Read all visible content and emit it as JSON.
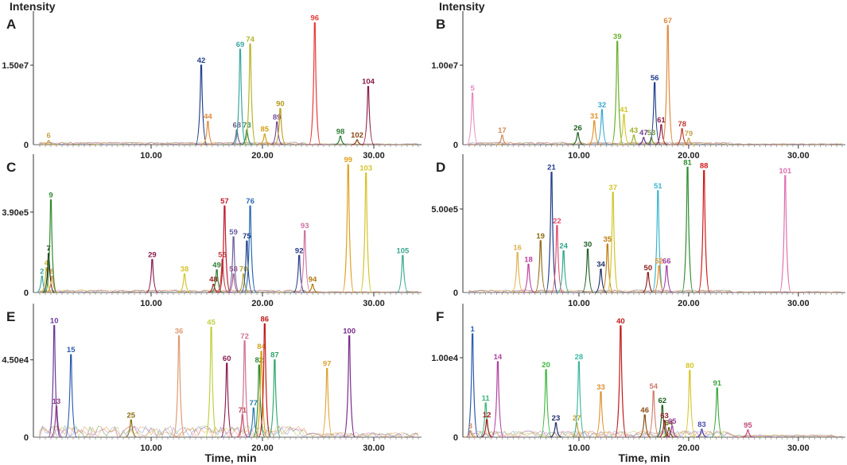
{
  "figure": {
    "y_axis_title": "Intensity",
    "x_axis_title": "Time, min"
  },
  "chart_data": [
    {
      "type": "line",
      "panel": "A",
      "xlim": [
        0,
        34
      ],
      "ylim": [
        0,
        24000000.0
      ],
      "y_tick": {
        "value": 15000000.0,
        "label": "1.50e7"
      },
      "y_zero_label": "0",
      "x_ticks": [
        10,
        20,
        30
      ],
      "x_tick_labels": [
        "10.00",
        "20.00",
        "30.00"
      ],
      "peaks": [
        {
          "label": "6",
          "x": 0.8,
          "y": 800000.0,
          "color": "#c9a24a"
        },
        {
          "label": "42",
          "x": 14.5,
          "y": 15000000.0,
          "color": "#1f3d8a"
        },
        {
          "label": "44",
          "x": 15.1,
          "y": 4400000.0,
          "color": "#e08a3c"
        },
        {
          "label": "68",
          "x": 17.7,
          "y": 2800000.0,
          "color": "#6b5b8a"
        },
        {
          "label": "69",
          "x": 18.0,
          "y": 18000000.0,
          "color": "#3aa6a0"
        },
        {
          "label": "73",
          "x": 18.6,
          "y": 2800000.0,
          "color": "#2e8b57"
        },
        {
          "label": "74",
          "x": 18.9,
          "y": 19000000.0,
          "color": "#b5b52a"
        },
        {
          "label": "85",
          "x": 20.2,
          "y": 2000000.0,
          "color": "#d4a017"
        },
        {
          "label": "89",
          "x": 21.3,
          "y": 4300000.0,
          "color": "#7a4a9a"
        },
        {
          "label": "90",
          "x": 21.6,
          "y": 6800000.0,
          "color": "#b59a1a"
        },
        {
          "label": "96",
          "x": 24.7,
          "y": 23000000.0,
          "color": "#e83a3a"
        },
        {
          "label": "98",
          "x": 27.0,
          "y": 1600000.0,
          "color": "#2e7d32"
        },
        {
          "label": "102",
          "x": 28.5,
          "y": 900000.0,
          "color": "#8b4513"
        },
        {
          "label": "104",
          "x": 29.5,
          "y": 11000000.0,
          "color": "#8b1a4a"
        }
      ]
    },
    {
      "type": "line",
      "panel": "B",
      "xlim": [
        0,
        34
      ],
      "ylim": [
        0,
        16000000.0
      ],
      "y_tick": {
        "value": 10000000.0,
        "label": "1.00e7"
      },
      "y_zero_label": "0",
      "x_ticks": [
        10,
        20,
        30
      ],
      "x_tick_labels": [
        "10.00",
        "20.00",
        "30.00"
      ],
      "peaks": [
        {
          "label": "5",
          "x": 0.3,
          "y": 6500000.0,
          "color": "#e88ac0"
        },
        {
          "label": "17",
          "x": 3.0,
          "y": 1200000.0,
          "color": "#d08a5a"
        },
        {
          "label": "26",
          "x": 9.9,
          "y": 1500000.0,
          "color": "#1b5e20"
        },
        {
          "label": "31",
          "x": 11.4,
          "y": 3000000.0,
          "color": "#e0902a"
        },
        {
          "label": "32",
          "x": 12.1,
          "y": 4400000.0,
          "color": "#3aa6d0"
        },
        {
          "label": "39",
          "x": 13.5,
          "y": 13000000.0,
          "color": "#6ab02a"
        },
        {
          "label": "41",
          "x": 14.1,
          "y": 3800000.0,
          "color": "#d4c42a"
        },
        {
          "label": "43",
          "x": 15.0,
          "y": 1200000.0,
          "color": "#a0b02a"
        },
        {
          "label": "47",
          "x": 15.9,
          "y": 900000.0,
          "color": "#6a3a8a"
        },
        {
          "label": "53",
          "x": 16.6,
          "y": 900000.0,
          "color": "#7a9a3a"
        },
        {
          "label": "56",
          "x": 16.9,
          "y": 7800000.0,
          "color": "#1f3d8a"
        },
        {
          "label": "61",
          "x": 17.5,
          "y": 2500000.0,
          "color": "#8b1a4a"
        },
        {
          "label": "67",
          "x": 18.1,
          "y": 15000000.0,
          "color": "#e08a3c"
        },
        {
          "label": "78",
          "x": 19.4,
          "y": 2000000.0,
          "color": "#c0392b"
        },
        {
          "label": "79",
          "x": 20.0,
          "y": 800000.0,
          "color": "#c9a24a"
        }
      ]
    },
    {
      "type": "line",
      "panel": "C",
      "xlim": [
        0,
        34
      ],
      "ylim": [
        0,
        640000.0
      ],
      "y_tick": {
        "value": 390000.0,
        "label": "3.90e5"
      },
      "y_zero_label": "0",
      "x_ticks": [
        10,
        20,
        30
      ],
      "x_tick_labels": [
        "10.00",
        "20.00",
        "30.00"
      ],
      "peaks": [
        {
          "label": "2",
          "x": 0.2,
          "y": 80000.0,
          "color": "#3aa6a0"
        },
        {
          "label": "4",
          "x": 0.6,
          "y": 120000.0,
          "color": "#b5b52a"
        },
        {
          "label": "7",
          "x": 0.8,
          "y": 190000.0,
          "color": "#222222"
        },
        {
          "label": "8",
          "x": 1.1,
          "y": 80000.0,
          "color": "#e08a3c"
        },
        {
          "label": "9",
          "x": 1.0,
          "y": 450000.0,
          "color": "#2e8b2e"
        },
        {
          "label": "29",
          "x": 10.1,
          "y": 160000.0,
          "color": "#8b1a4a"
        },
        {
          "label": "38",
          "x": 13.0,
          "y": 90000.0,
          "color": "#d4c42a"
        },
        {
          "label": "48",
          "x": 15.6,
          "y": 40000.0,
          "color": "#a02020"
        },
        {
          "label": "49",
          "x": 15.9,
          "y": 110000.0,
          "color": "#2e7d32"
        },
        {
          "label": "55",
          "x": 16.4,
          "y": 160000.0,
          "color": "#c04040"
        },
        {
          "label": "57",
          "x": 16.6,
          "y": 420000.0,
          "color": "#c0182a"
        },
        {
          "label": "58",
          "x": 17.4,
          "y": 90000.0,
          "color": "#a05a8a"
        },
        {
          "label": "59",
          "x": 17.4,
          "y": 270000.0,
          "color": "#6a5aa0"
        },
        {
          "label": "70",
          "x": 18.3,
          "y": 90000.0,
          "color": "#b0a030"
        },
        {
          "label": "75",
          "x": 18.6,
          "y": 250000.0,
          "color": "#1f3d8a"
        },
        {
          "label": "76",
          "x": 18.9,
          "y": 420000.0,
          "color": "#2a6ab0"
        },
        {
          "label": "92",
          "x": 23.3,
          "y": 180000.0,
          "color": "#2a3a8a"
        },
        {
          "label": "93",
          "x": 23.8,
          "y": 300000.0,
          "color": "#d070a0"
        },
        {
          "label": "94",
          "x": 24.5,
          "y": 40000.0,
          "color": "#b07a10"
        },
        {
          "label": "99",
          "x": 27.7,
          "y": 620000.0,
          "color": "#e0a020"
        },
        {
          "label": "103",
          "x": 29.3,
          "y": 580000.0,
          "color": "#d4c42a"
        },
        {
          "label": "105",
          "x": 32.6,
          "y": 180000.0,
          "color": "#3aa690"
        }
      ]
    },
    {
      "type": "line",
      "panel": "D",
      "xlim": [
        0,
        34
      ],
      "ylim": [
        0,
        790000.0
      ],
      "y_tick": {
        "value": 500000.0,
        "label": "5.00e5"
      },
      "y_zero_label": "0",
      "x_ticks": [
        10,
        20,
        30
      ],
      "x_tick_labels": [
        "10.00",
        "20.00",
        "30.00"
      ],
      "peaks": [
        {
          "label": "16",
          "x": 4.4,
          "y": 240000.0,
          "color": "#e0b050"
        },
        {
          "label": "18",
          "x": 5.4,
          "y": 170000.0,
          "color": "#c040a0"
        },
        {
          "label": "19",
          "x": 6.5,
          "y": 310000.0,
          "color": "#8a6a10"
        },
        {
          "label": "21",
          "x": 7.5,
          "y": 720000.0,
          "color": "#1f3d8a"
        },
        {
          "label": "22",
          "x": 8.0,
          "y": 400000.0,
          "color": "#e0486a"
        },
        {
          "label": "24",
          "x": 8.6,
          "y": 250000.0,
          "color": "#2aa68a"
        },
        {
          "label": "30",
          "x": 10.8,
          "y": 260000.0,
          "color": "#1b5e20"
        },
        {
          "label": "34",
          "x": 12.0,
          "y": 140000.0,
          "color": "#1f2f6a"
        },
        {
          "label": "35",
          "x": 12.6,
          "y": 290000.0,
          "color": "#c07a10"
        },
        {
          "label": "37",
          "x": 13.1,
          "y": 600000.0,
          "color": "#d4c42a"
        },
        {
          "label": "50",
          "x": 16.3,
          "y": 120000.0,
          "color": "#8b1a1a"
        },
        {
          "label": "51",
          "x": 17.2,
          "y": 610000.0,
          "color": "#3ab6d0"
        },
        {
          "label": "52",
          "x": 17.3,
          "y": 160000.0,
          "color": "#e0902a"
        },
        {
          "label": "66",
          "x": 18.0,
          "y": 160000.0,
          "color": "#a040a0"
        },
        {
          "label": "81",
          "x": 19.9,
          "y": 750000.0,
          "color": "#2e8b2e"
        },
        {
          "label": "88",
          "x": 21.4,
          "y": 730000.0,
          "color": "#d01818"
        },
        {
          "label": "101",
          "x": 28.8,
          "y": 700000.0,
          "color": "#e070b0"
        }
      ]
    },
    {
      "type": "line",
      "panel": "E",
      "xlim": [
        0,
        34
      ],
      "ylim": [
        0,
        74000.0
      ],
      "y_tick": {
        "value": 45000.0,
        "label": "4.50e4"
      },
      "y_zero_label": "0",
      "x_ticks": [
        10,
        20,
        30
      ],
      "x_tick_labels": [
        "10.00",
        "20.00",
        "30.00"
      ],
      "peaks": [
        {
          "label": "10",
          "x": 1.3,
          "y": 65000.0,
          "color": "#6a3a9a"
        },
        {
          "label": "13",
          "x": 1.5,
          "y": 18000.0,
          "color": "#8a3a8a"
        },
        {
          "label": "15",
          "x": 2.8,
          "y": 48000.0,
          "color": "#2a5ab0"
        },
        {
          "label": "25",
          "x": 8.2,
          "y": 10000.0,
          "color": "#8a6a10"
        },
        {
          "label": "36",
          "x": 12.5,
          "y": 59000.0,
          "color": "#e09a70"
        },
        {
          "label": "45",
          "x": 15.4,
          "y": 64000.0,
          "color": "#c0d040"
        },
        {
          "label": "60",
          "x": 16.8,
          "y": 43000.0,
          "color": "#8b1a4a"
        },
        {
          "label": "71",
          "x": 18.2,
          "y": 13000.0,
          "color": "#c04a5a"
        },
        {
          "label": "72",
          "x": 18.4,
          "y": 56000.0,
          "color": "#d07090"
        },
        {
          "label": "77",
          "x": 19.2,
          "y": 17000.0,
          "color": "#2a7ab0"
        },
        {
          "label": "82",
          "x": 19.7,
          "y": 42000.0,
          "color": "#2e8b2e"
        },
        {
          "label": "84",
          "x": 19.9,
          "y": 50000.0,
          "color": "#d4a017"
        },
        {
          "label": "86",
          "x": 20.2,
          "y": 66000.0,
          "color": "#c01818"
        },
        {
          "label": "87",
          "x": 21.1,
          "y": 45000.0,
          "color": "#2aa66a"
        },
        {
          "label": "97",
          "x": 25.8,
          "y": 40000.0,
          "color": "#e0a030"
        },
        {
          "label": "100",
          "x": 27.8,
          "y": 59000.0,
          "color": "#7a2a8a"
        }
      ]
    },
    {
      "type": "line",
      "panel": "F",
      "xlim": [
        0,
        34
      ],
      "ylim": [
        0,
        16000.0
      ],
      "y_tick": {
        "value": 10000.0,
        "label": "1.00e4"
      },
      "y_zero_label": "0",
      "x_ticks": [
        10,
        20,
        30
      ],
      "x_tick_labels": [
        "10.00",
        "20.00",
        "30.00"
      ],
      "peaks": [
        {
          "label": "1",
          "x": 0.3,
          "y": 13000.0,
          "color": "#2a5ab0"
        },
        {
          "label": "3",
          "x": 0.1,
          "y": 800.0,
          "color": "#d08a5a"
        },
        {
          "label": "11",
          "x": 1.5,
          "y": 4300.0,
          "color": "#3ab67a"
        },
        {
          "label": "12",
          "x": 1.6,
          "y": 2200.0,
          "color": "#a01818"
        },
        {
          "label": "14",
          "x": 2.6,
          "y": 9500.0,
          "color": "#b040a0"
        },
        {
          "label": "20",
          "x": 7.0,
          "y": 8500.0,
          "color": "#3ab63a"
        },
        {
          "label": "23",
          "x": 7.9,
          "y": 1800.0,
          "color": "#1f2f6a"
        },
        {
          "label": "27",
          "x": 9.8,
          "y": 1800.0,
          "color": "#c0a030"
        },
        {
          "label": "28",
          "x": 10.0,
          "y": 9500.0,
          "color": "#3ab6a0"
        },
        {
          "label": "33",
          "x": 12.0,
          "y": 5700.0,
          "color": "#e09030"
        },
        {
          "label": "40",
          "x": 13.8,
          "y": 14000.0,
          "color": "#c01818"
        },
        {
          "label": "46",
          "x": 16.0,
          "y": 2800.0,
          "color": "#8a4a10"
        },
        {
          "label": "54",
          "x": 16.8,
          "y": 5800.0,
          "color": "#d07a6a"
        },
        {
          "label": "62",
          "x": 17.6,
          "y": 4000.0,
          "color": "#1b5e20"
        },
        {
          "label": "63",
          "x": 17.8,
          "y": 2100.0,
          "color": "#8b1a1a"
        },
        {
          "label": "64",
          "x": 18.2,
          "y": 1200.0,
          "color": "#6a5a10"
        },
        {
          "label": "65",
          "x": 18.5,
          "y": 1400.0,
          "color": "#a040a0"
        },
        {
          "label": "80",
          "x": 20.1,
          "y": 8400.0,
          "color": "#d4c42a"
        },
        {
          "label": "83",
          "x": 21.2,
          "y": 1000.0,
          "color": "#4a4ab0"
        },
        {
          "label": "91",
          "x": 22.6,
          "y": 6200.0,
          "color": "#3aa63a"
        },
        {
          "label": "95",
          "x": 25.4,
          "y": 900.0,
          "color": "#c04a7a"
        }
      ]
    }
  ]
}
